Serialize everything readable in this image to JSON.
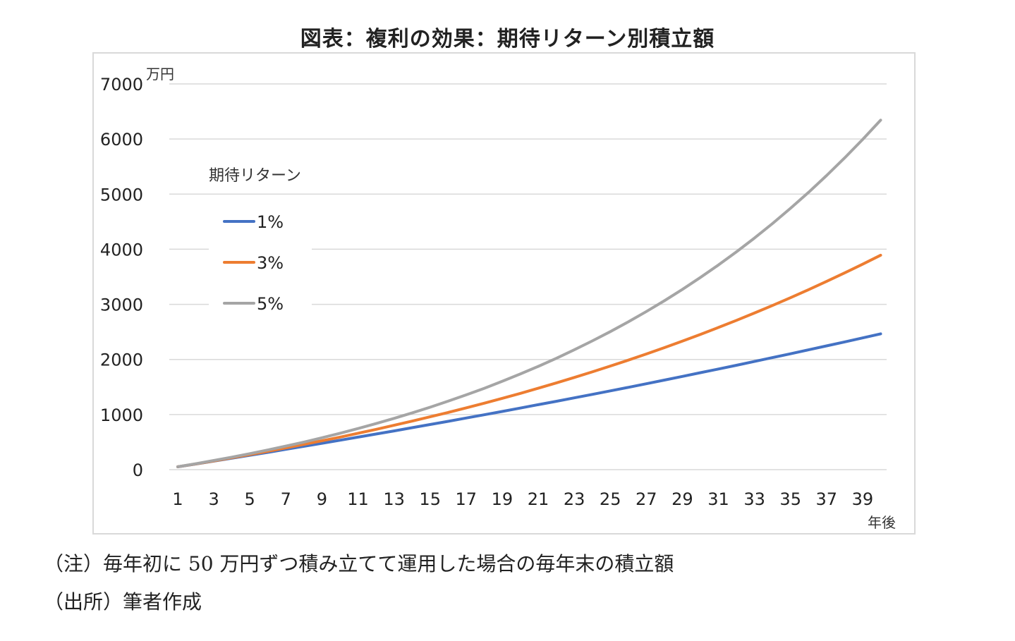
{
  "title": "図表：複利の効果：期待リターン別積立額",
  "notes": {
    "note1": "（注）毎年初に 50 万円ずつ積み立てて運用した場合の毎年末の積立額",
    "source": "（出所）筆者作成"
  },
  "chart_data": {
    "type": "line",
    "title": "図表：複利の効果：期待リターン別積立額",
    "ylabel": "万円",
    "xlabel": "年後",
    "ylim": [
      0,
      7000
    ],
    "yticks": [
      0,
      1000,
      2000,
      3000,
      4000,
      5000,
      6000,
      7000
    ],
    "xlim": [
      1,
      40
    ],
    "xticks": [
      1,
      3,
      5,
      7,
      9,
      11,
      13,
      15,
      17,
      19,
      21,
      23,
      25,
      27,
      29,
      31,
      33,
      35,
      37,
      39
    ],
    "grid": true,
    "legend_title": "期待リターン",
    "legend_placement": "upper-left",
    "x": [
      1,
      2,
      3,
      4,
      5,
      6,
      7,
      8,
      9,
      10,
      11,
      12,
      13,
      14,
      15,
      16,
      17,
      18,
      19,
      20,
      21,
      22,
      23,
      24,
      25,
      26,
      27,
      28,
      29,
      30,
      31,
      32,
      33,
      34,
      35,
      36,
      37,
      38,
      39,
      40
    ],
    "series": [
      {
        "name": "1%",
        "color": "#4472c4",
        "values": [
          51,
          102,
          155,
          207,
          260,
          314,
          368,
          423,
          478,
          533,
          590,
          646,
          703,
          761,
          819,
          877,
          937,
          996,
          1056,
          1117,
          1178,
          1240,
          1303,
          1366,
          1430,
          1494,
          1559,
          1625,
          1692,
          1759,
          1826,
          1894,
          1963,
          2033,
          2103,
          2174,
          2246,
          2318,
          2391,
          2465
        ]
      },
      {
        "name": "3%",
        "color": "#ed7d31",
        "values": [
          52,
          104,
          159,
          215,
          273,
          333,
          395,
          458,
          523,
          590,
          660,
          731,
          805,
          880,
          958,
          1038,
          1121,
          1206,
          1294,
          1384,
          1477,
          1573,
          1672,
          1774,
          1880,
          1988,
          2099,
          2214,
          2333,
          2455,
          2580,
          2709,
          2842,
          2979,
          3120,
          3266,
          3415,
          3569,
          3728,
          3891
        ]
      },
      {
        "name": "5%",
        "color": "#a5a5a5",
        "values": [
          53,
          108,
          166,
          226,
          290,
          357,
          428,
          501,
          579,
          660,
          746,
          836,
          930,
          1029,
          1133,
          1242,
          1356,
          1476,
          1602,
          1735,
          1874,
          2020,
          2174,
          2335,
          2505,
          2682,
          2869,
          3065,
          3271,
          3488,
          3714,
          3953,
          4203,
          4466,
          4742,
          5032,
          5336,
          5655,
          5990,
          6342
        ]
      }
    ]
  }
}
